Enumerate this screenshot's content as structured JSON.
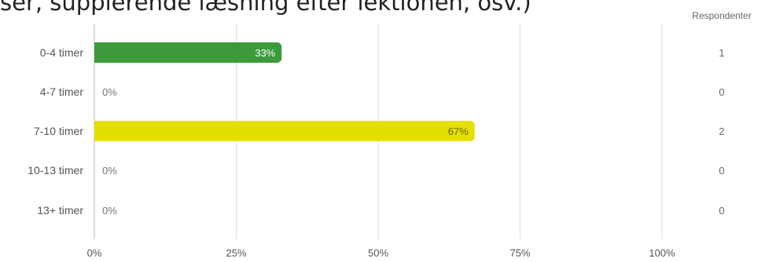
{
  "header": {
    "text": "ser, supplerende læsning efter lektionen, osv.)"
  },
  "colors": {
    "green": "#3c9a3c",
    "yellow": "#e5df00",
    "grid": "#d9d9d9",
    "axis": "#bbbbbb"
  },
  "chart_data": {
    "type": "bar",
    "orientation": "horizontal",
    "categories": [
      "0-4 timer",
      "4-7 timer",
      "7-10 timer",
      "10-13 timer",
      "13+ timer"
    ],
    "values": [
      33,
      0,
      67,
      0,
      0
    ],
    "value_labels": [
      "33%",
      "0%",
      "67%",
      "0%",
      "0%"
    ],
    "bar_colors": [
      "#3c9a3c",
      null,
      "#e5df00",
      null,
      null
    ],
    "respondents_header": "Respondenter",
    "respondents": [
      "1",
      "0",
      "2",
      "0",
      "0"
    ],
    "xticks": [
      "0%",
      "25%",
      "50%",
      "75%",
      "100%"
    ],
    "xlim": [
      0,
      100
    ],
    "grid": true
  }
}
